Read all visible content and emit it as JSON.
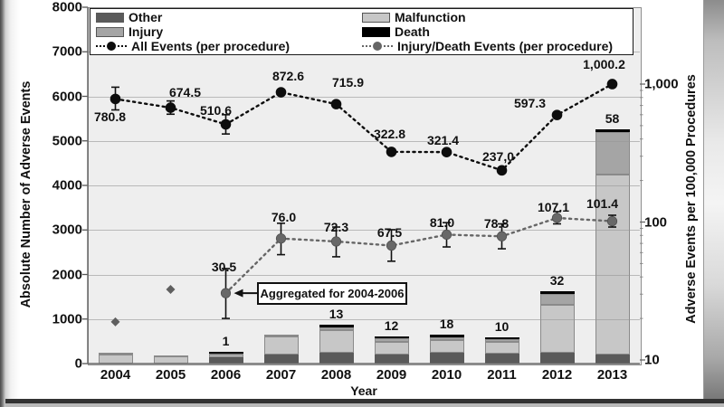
{
  "chart_data": {
    "type": "combo: stacked-bar + dual-axis dotted lines",
    "categories": [
      "2004",
      "2005",
      "2006",
      "2007",
      "2008",
      "2009",
      "2010",
      "2011",
      "2012",
      "2013"
    ],
    "xlabel": "Year",
    "left_axis": {
      "label": "Absolute Number of Adverse Events",
      "min": 0,
      "max": 8000,
      "tick_step": 1000,
      "gridlines": true
    },
    "right_axis": {
      "label": "Adverse Events per 100,000 Procedures",
      "scale": "log",
      "min": 10,
      "max": 1000,
      "tick_labels": [
        "10",
        "100",
        "1,000"
      ]
    },
    "bar_series": [
      {
        "name": "Other",
        "color": "#5a5a5a",
        "values": [
          0,
          0,
          142,
          203,
          244,
          203,
          244,
          223,
          244,
          203
        ]
      },
      {
        "name": "Malfunction",
        "color": "#c7c7c7",
        "values": [
          210,
          153,
          56,
          407,
          510,
          280,
          290,
          270,
          1076,
          4049
        ]
      },
      {
        "name": "Injury",
        "color": "#a5a5a5",
        "values": [
          34,
          30,
          24,
          40,
          65,
          84,
          57,
          55,
          244,
          948
        ]
      },
      {
        "name": "Death",
        "color": "#000000",
        "values": [
          0,
          0,
          1,
          0,
          13,
          12,
          18,
          10,
          32,
          58
        ]
      }
    ],
    "death_count_labels": [
      "",
      "",
      "1",
      "",
      "13",
      "12",
      "18",
      "10",
      "32",
      "58"
    ],
    "line_series": [
      {
        "name": "All Events (per procedure)",
        "axis": "right",
        "color": "#0d0d0d",
        "marker": "circle",
        "style": "dotted",
        "values": [
          780.8,
          674.5,
          510.6,
          872.6,
          715.9,
          322.8,
          321.4,
          237.0,
          597.3,
          1000.2
        ],
        "labels": [
          "780.8",
          "674.5",
          "510.6",
          "872.6",
          "715.9",
          "322.8",
          "321.4",
          "237,0",
          "597.3",
          "1,000.2"
        ],
        "error_bars": [
          [
            650,
            950
          ],
          [
            605,
            755
          ],
          [
            435,
            600
          ],
          null,
          null,
          null,
          null,
          null,
          null,
          null
        ]
      },
      {
        "name": "Injury/Death Events (per procedure)",
        "axis": "right",
        "color": "#666666",
        "marker": "circle",
        "style": "dotted",
        "values": [
          null,
          null,
          30.5,
          76.0,
          72.3,
          67.5,
          81.0,
          78.8,
          107.1,
          101.4
        ],
        "labels": [
          null,
          null,
          "30.5",
          "76.0",
          "72.3",
          "67.5",
          "81.0",
          "78.8",
          "107.1",
          "101.4"
        ],
        "error_bars": [
          null,
          null,
          [
            20,
            46
          ],
          [
            58,
            98
          ],
          [
            56,
            92
          ],
          [
            52,
            88
          ],
          [
            66,
            99
          ],
          [
            64,
            97
          ],
          [
            97,
            119
          ],
          [
            92,
            112
          ]
        ]
      }
    ],
    "isolated_markers": [
      {
        "category": "2004",
        "value": 18.9,
        "marker": "diamond",
        "color": "#5f5f5f"
      },
      {
        "category": "2005",
        "value": 32.5,
        "marker": "diamond",
        "color": "#5f5f5f"
      }
    ],
    "annotation": {
      "text": "Aggregated for 2004-2006",
      "target_category": "2006",
      "target_series": "Injury/Death Events (per procedure)"
    },
    "legend_position": "top"
  }
}
